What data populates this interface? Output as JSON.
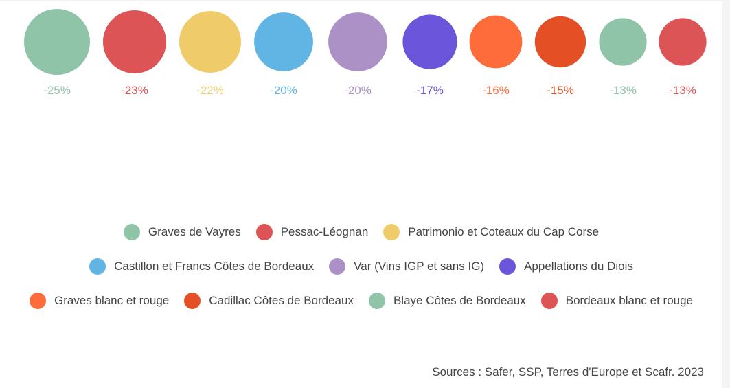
{
  "chart_data": {
    "type": "bubble",
    "title": "",
    "categories": [
      "Graves de Vayres",
      "Pessac-Léognan",
      "Patrimonio et Coteaux du Cap Corse",
      "Castillon et Francs Côtes de Bordeaux",
      "Var (Vins IGP et sans IG)",
      "Appellations du Diois",
      "Graves blanc et rouge",
      "Cadillac Côtes de Bordeaux",
      "Blaye Côtes de Bordeaux",
      "Bordeaux blanc et rouge"
    ],
    "values": [
      -25,
      -23,
      -22,
      -20,
      -20,
      -17,
      -16,
      -15,
      -13,
      -13
    ],
    "labels": [
      "-25%",
      "-23%",
      "-22%",
      "-20%",
      "-20%",
      "-17%",
      "-16%",
      "-15%",
      "-13%",
      "-13%"
    ],
    "colors": [
      "#8fc4a9",
      "#dc5456",
      "#f0cb6a",
      "#61b5e5",
      "#ab91c5",
      "#6b55db",
      "#ff6c3b",
      "#e44f25",
      "#8fc4a9",
      "#dc5456"
    ],
    "legend_position": "bottom"
  },
  "legend_rows": [
    [
      0,
      1,
      2
    ],
    [
      3,
      4,
      5
    ],
    [
      6,
      7,
      8,
      9
    ]
  ],
  "sources": "Sources : Safer, SSP, Terres d'Europe et Scafr. 2023"
}
